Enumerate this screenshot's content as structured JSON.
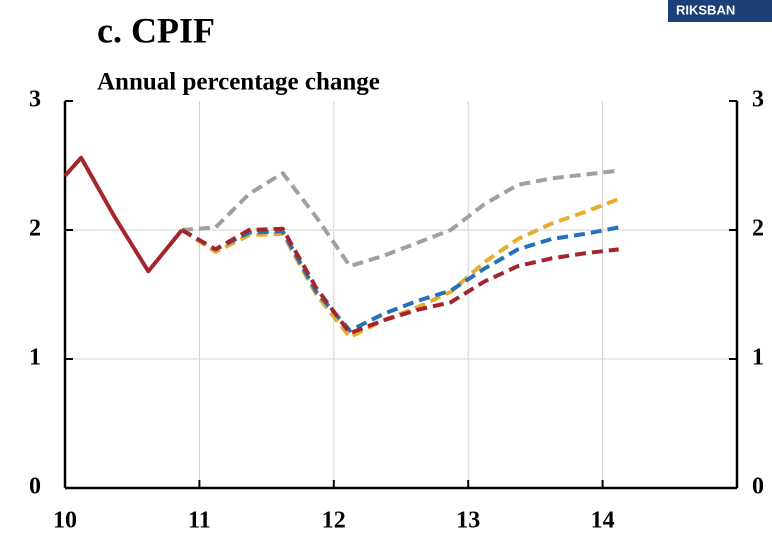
{
  "logo": "RIKSBAN",
  "chart_data": {
    "type": "line",
    "title": "c. CPIF",
    "subtitle": "Annual percentage change",
    "xlim": [
      10,
      15
    ],
    "xticks": [
      10,
      11,
      12,
      13,
      14
    ],
    "ylim": [
      0,
      3
    ],
    "yticks": [
      0,
      1,
      2,
      3
    ],
    "grid": true,
    "right_axis_labels": true,
    "series": [
      {
        "color": "#a4262c",
        "dash": false,
        "x": [
          10,
          10.12,
          10.37,
          10.62,
          10.87
        ],
        "values": [
          2.42,
          2.56,
          2.1,
          1.68,
          2.0
        ]
      },
      {
        "color": "#a0a0a0",
        "dash": true,
        "x": [
          10.87,
          11.12,
          11.37,
          11.62,
          11.87,
          12.12,
          12.37,
          12.62,
          12.87,
          13.12,
          13.37,
          13.62,
          13.87,
          14.12
        ],
        "values": [
          2.0,
          2.02,
          2.28,
          2.44,
          2.1,
          1.72,
          1.8,
          1.9,
          2.0,
          2.2,
          2.35,
          2.4,
          2.43,
          2.46
        ]
      },
      {
        "color": "#e8ad2e",
        "dash": true,
        "x": [
          10.87,
          11.12,
          11.37,
          11.62,
          11.87,
          12.12,
          12.37,
          12.62,
          12.87,
          13.12,
          13.37,
          13.62,
          13.87,
          14.12
        ],
        "values": [
          2.0,
          1.83,
          1.96,
          1.97,
          1.5,
          1.17,
          1.3,
          1.4,
          1.52,
          1.75,
          1.93,
          2.05,
          2.14,
          2.24
        ]
      },
      {
        "color": "#2472b8",
        "dash": true,
        "x": [
          10.87,
          11.12,
          11.37,
          11.62,
          11.87,
          12.12,
          12.37,
          12.62,
          12.87,
          13.12,
          13.37,
          13.62,
          13.87,
          14.12
        ],
        "values": [
          2.0,
          1.85,
          1.98,
          1.99,
          1.52,
          1.22,
          1.35,
          1.45,
          1.53,
          1.7,
          1.85,
          1.93,
          1.97,
          2.02
        ]
      },
      {
        "color": "#a4262c",
        "dash": true,
        "x": [
          10.87,
          11.12,
          11.37,
          11.62,
          11.87,
          12.12,
          12.37,
          12.62,
          12.87,
          13.12,
          13.37,
          13.62,
          13.87,
          14.12
        ],
        "values": [
          2.0,
          1.85,
          2.0,
          2.01,
          1.55,
          1.2,
          1.3,
          1.38,
          1.44,
          1.6,
          1.72,
          1.78,
          1.82,
          1.85
        ]
      }
    ]
  }
}
